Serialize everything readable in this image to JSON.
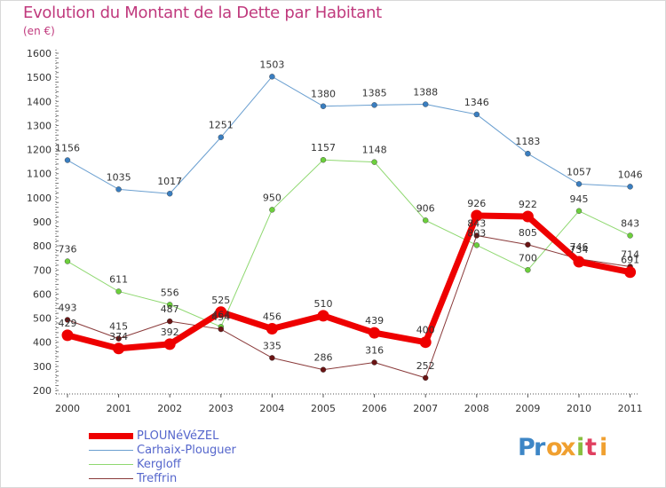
{
  "title": "Evolution du Montant de la Dette par Habitant",
  "subtitle": "(en €)",
  "logo": {
    "letters": [
      "P",
      "r",
      "o",
      "x",
      "i",
      "t",
      "i"
    ],
    "colors": [
      "#3d86c6",
      "#3d86c6",
      "#f0a030",
      "#f0a030",
      "#88c040",
      "#e04060",
      "#f0a030"
    ]
  },
  "chart_data": {
    "type": "line",
    "title": "Evolution du Montant de la Dette par Habitant",
    "ylabel": "(en €)",
    "x": [
      "2000",
      "2001",
      "2002",
      "2003",
      "2004",
      "2005",
      "2006",
      "2007",
      "2008",
      "2009",
      "2010",
      "2011"
    ],
    "yticks": [
      "200",
      "300",
      "400",
      "500",
      "600",
      "700",
      "800",
      "900",
      "1000",
      "1100",
      "1200",
      "1300",
      "1400",
      "1500",
      "1600"
    ],
    "ylim": [
      200,
      1600
    ],
    "grid": false,
    "legend_position": "bottom-left",
    "series": [
      {
        "name": "Carhaix-Plouguer",
        "color": "#6a9fd0",
        "marker_color": "#3a7ec0",
        "width": 1,
        "values": [
          1156,
          1035,
          1017,
          1251,
          1503,
          1380,
          1385,
          1388,
          1346,
          1183,
          1057,
          1046
        ],
        "labels": [
          "1156",
          "1035",
          "1017",
          "1251",
          "1503",
          "1380",
          "1385",
          "1388",
          "1346",
          "1183",
          "1057",
          "1046"
        ]
      },
      {
        "name": "Kergloff",
        "color": "#8fd870",
        "marker_color": "#6ccf3c",
        "width": 1,
        "values": [
          736,
          611,
          556,
          464,
          950,
          1157,
          1148,
          906,
          803,
          700,
          945,
          843
        ],
        "labels": [
          "736",
          "611",
          "556",
          "464",
          "950",
          "1157",
          "1148",
          "906",
          "803",
          "700",
          "945",
          "843"
        ]
      },
      {
        "name": "Treffrin",
        "color": "#8a3a3a",
        "marker_color": "#6a1414",
        "width": 1,
        "values": [
          493,
          415,
          487,
          454,
          335,
          286,
          316,
          252,
          843,
          805,
          746,
          714
        ],
        "labels": [
          "493",
          "415",
          "487",
          "454",
          "335",
          "286",
          "316",
          "252",
          "843",
          "805",
          "746",
          "714"
        ]
      },
      {
        "name": "PLOUNéVéZEL",
        "color": "#ee0000",
        "marker_color": "#ee0000",
        "width": 7,
        "values": [
          429,
          374,
          392,
          525,
          456,
          510,
          439,
          400,
          926,
          922,
          734,
          691
        ],
        "labels": [
          "429",
          "374",
          "392",
          "525",
          "456",
          "510",
          "439",
          "400",
          "926",
          "922",
          "734",
          "691"
        ]
      }
    ],
    "legend": [
      {
        "label": "PLOUNéVéZEL",
        "color": "#ee0000",
        "width": 7
      },
      {
        "label": "Carhaix-Plouguer",
        "color": "#6a9fd0",
        "width": 1
      },
      {
        "label": "Kergloff",
        "color": "#8fd870",
        "width": 1
      },
      {
        "label": "Treffrin",
        "color": "#8a3a3a",
        "width": 1
      }
    ]
  }
}
